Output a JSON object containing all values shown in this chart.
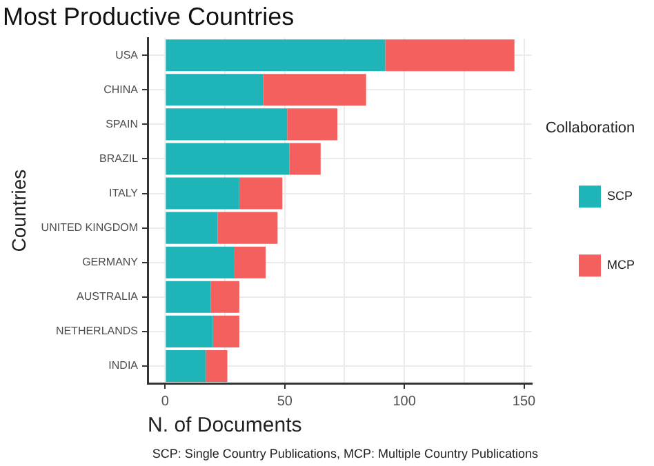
{
  "chart_data": {
    "type": "bar",
    "orientation": "horizontal",
    "stacked": true,
    "title": "Most Productive Countries",
    "xlabel": "N. of Documents",
    "ylabel": "Countries",
    "legend_title": "Collaboration",
    "legend": "right",
    "categories": [
      "USA",
      "CHINA",
      "SPAIN",
      "BRAZIL",
      "ITALY",
      "UNITED KINGDOM",
      "GERMANY",
      "AUSTRALIA",
      "NETHERLANDS",
      "INDIA"
    ],
    "series": [
      {
        "name": "SCP",
        "color": "#1fb5b8",
        "values": [
          92,
          41,
          51,
          52,
          31,
          22,
          29,
          19,
          20,
          17
        ]
      },
      {
        "name": "MCP",
        "color": "#f4605d",
        "values": [
          54,
          43,
          21,
          13,
          18,
          25,
          13,
          12,
          11,
          9
        ]
      }
    ],
    "xlim": [
      -7.3,
      153.3
    ],
    "xticks": [
      0,
      {
        "value": 25,
        "label": null
      },
      50,
      {
        "value": 75,
        "label": null
      },
      100,
      {
        "value": 125,
        "label": null
      },
      150
    ],
    "grid": true,
    "annotations": [
      "SCP: Single Country Publications, MCP: Multiple Country Publications"
    ]
  }
}
